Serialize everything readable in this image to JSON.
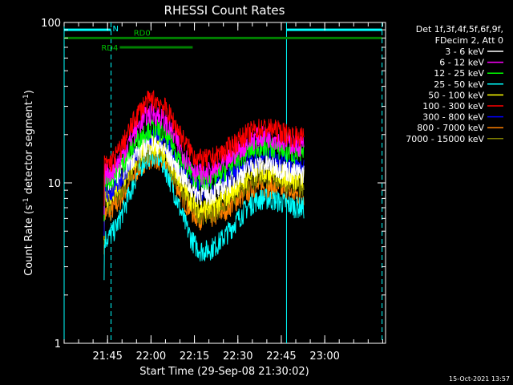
{
  "chart_data": {
    "type": "line",
    "title": "RHESSI Count Rates",
    "xlabel": "Start Time (29-Sep-08 21:30:02)",
    "ylabel_main": "Count Rate (s",
    "ylabel_sup1": "-1",
    "ylabel_mid": " detector segment",
    "ylabel_sup2": "-1",
    "ylabel_end": ")",
    "yscale": "log",
    "ylim": [
      1,
      100
    ],
    "xlim_min": [
      21.5,
      23.35
    ],
    "x_ticks": [
      {
        "label": "21:45",
        "value": 21.75
      },
      {
        "label": "22:00",
        "value": 22.0
      },
      {
        "label": "22:15",
        "value": 22.25
      },
      {
        "label": "22:30",
        "value": 22.5
      },
      {
        "label": "22:45",
        "value": 22.75
      },
      {
        "label": "23:00",
        "value": 23.0
      }
    ],
    "y_ticks": [
      {
        "label": "1",
        "value": 1
      },
      {
        "label": "10",
        "value": 10
      },
      {
        "label": "100",
        "value": 100
      }
    ],
    "legend_header": [
      "Det 1f,3f,4f,5f,6f,9f,",
      "FDecim 2, Att 0"
    ],
    "legend_position": "top-right",
    "series": [
      {
        "name": "3 - 6 keV",
        "color": "#ffffff",
        "baseline": [
          10.5,
          17.5,
          8.5,
          13.0
        ]
      },
      {
        "name": "6 - 12 keV",
        "color": "#ff00ff",
        "baseline": [
          11.5,
          27.0,
          11.5,
          19.5
        ]
      },
      {
        "name": "12 - 25 keV",
        "color": "#00ff00",
        "baseline": [
          10.5,
          22.0,
          10.5,
          17.0
        ]
      },
      {
        "name": "25 - 50 keV",
        "color": "#00ffff",
        "baseline": [
          4.5,
          15.0,
          3.8,
          8.0
        ]
      },
      {
        "name": "50 - 100 keV",
        "color": "#ffff00",
        "baseline": [
          8.0,
          17.5,
          7.0,
          12.0
        ]
      },
      {
        "name": "100 - 300 keV",
        "color": "#ff0000",
        "baseline": [
          13.0,
          33.0,
          14.0,
          22.0
        ]
      },
      {
        "name": "300 - 800 keV",
        "color": "#0000ff",
        "baseline": [
          8.5,
          20.0,
          9.0,
          14.5
        ]
      },
      {
        "name": "800 - 7000 keV",
        "color": "#ff8000",
        "baseline": [
          6.5,
          14.5,
          6.0,
          9.5
        ]
      },
      {
        "name": "7000 - 15000 keV",
        "color": "#808000",
        "baseline": [
          7.5,
          16.0,
          6.5,
          11.0
        ]
      }
    ],
    "curve_times": [
      21.73,
      22.01,
      22.3,
      22.65,
      22.88
    ],
    "attenuator_bars": [
      {
        "label": "N",
        "color": "#00ffff",
        "start": 21.5,
        "end": 21.77,
        "level": 90
      },
      {
        "label": "",
        "color": "#00ffff",
        "start": 22.78,
        "end": 23.33,
        "level": 90
      },
      {
        "label": "RD0",
        "color": "#008000",
        "start": 21.5,
        "end": 23.33,
        "level": 80
      },
      {
        "label": "RD4",
        "color": "#008000",
        "start": 21.82,
        "end": 22.24,
        "level": 70
      }
    ],
    "vlines": [
      {
        "time": 21.5,
        "color": "#00ffff",
        "style": "solid"
      },
      {
        "time": 21.77,
        "color": "#00ffff",
        "style": "dashed"
      },
      {
        "time": 22.78,
        "color": "#00ffff",
        "style": "solid"
      },
      {
        "time": 23.33,
        "color": "#00ffff",
        "style": "dashed"
      }
    ],
    "timestamp": "15-Oct-2021 13:57"
  }
}
